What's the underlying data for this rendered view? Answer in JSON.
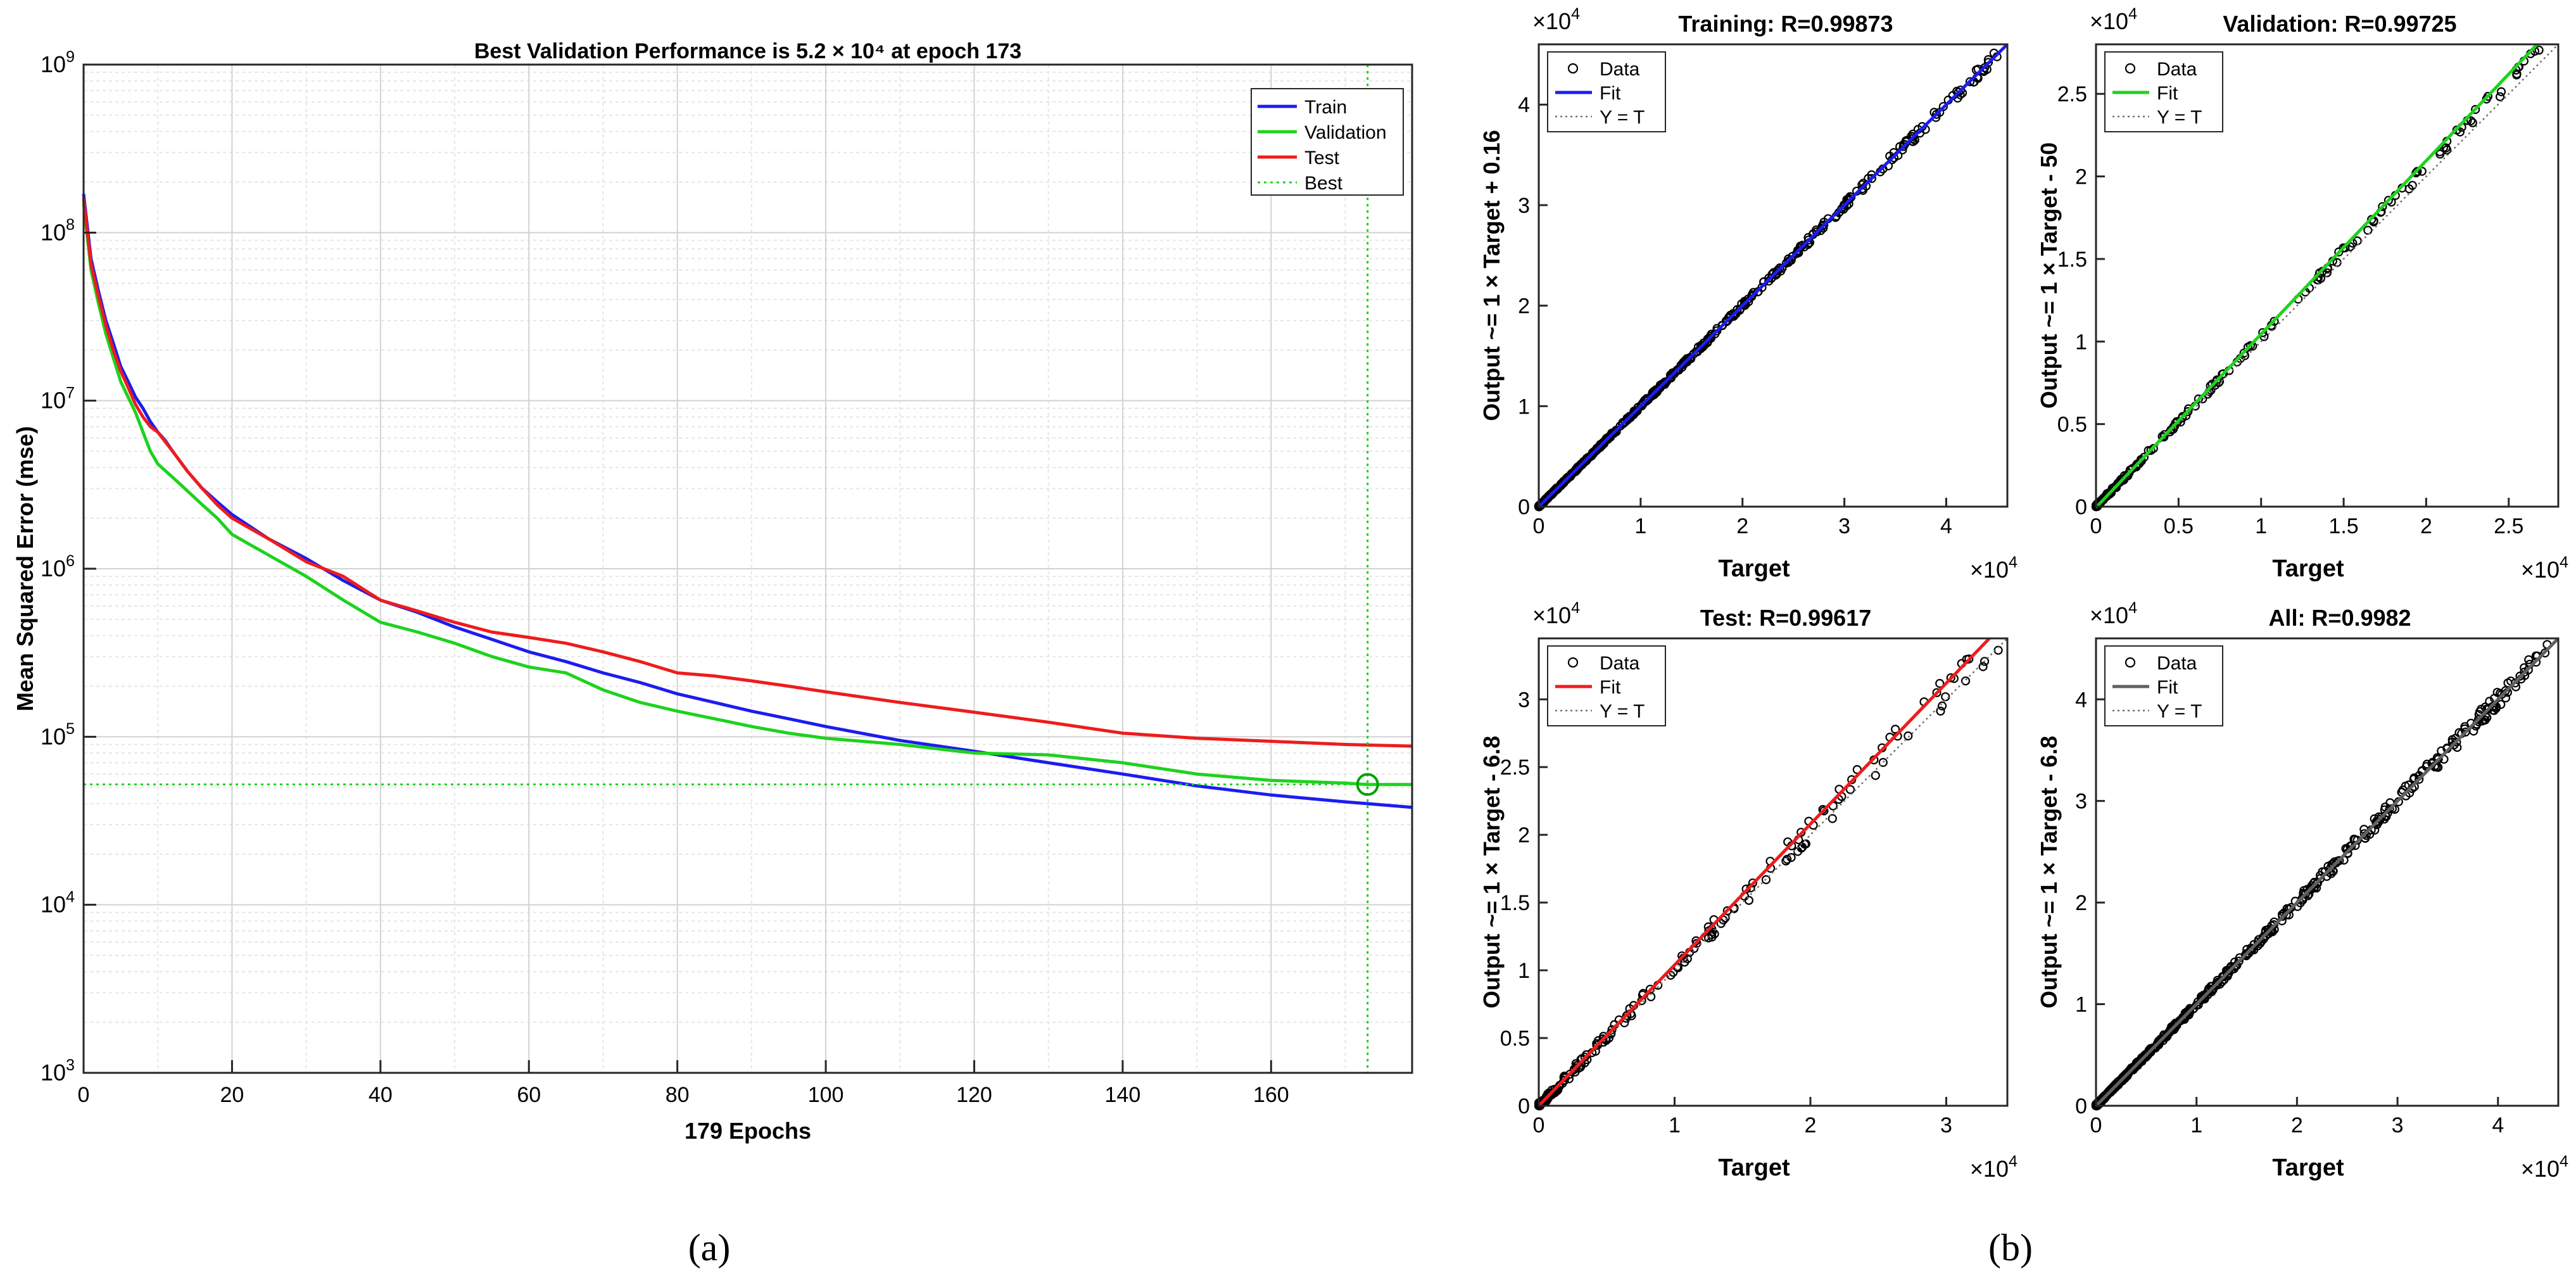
{
  "panel_labels": {
    "a": "(a)",
    "b": "(b)"
  },
  "chart_data": [
    {
      "id": "performance",
      "type": "line",
      "title": "Best Validation Performance is 5.2 × 10⁴ at epoch 173",
      "xlabel": "179 Epochs",
      "ylabel": "Mean Squared Error  (mse)",
      "xlim": [
        0,
        179
      ],
      "ylim": [
        1000,
        1000000000
      ],
      "yscale": "log",
      "grid": true,
      "x_ticks": [
        0,
        20,
        40,
        60,
        80,
        100,
        120,
        140,
        160
      ],
      "y_ticks": [
        {
          "value": 1000,
          "base": "10",
          "exp": "3"
        },
        {
          "value": 10000,
          "base": "10",
          "exp": "4"
        },
        {
          "value": 100000,
          "base": "10",
          "exp": "5"
        },
        {
          "value": 1000000,
          "base": "10",
          "exp": "6"
        },
        {
          "value": 10000000,
          "base": "10",
          "exp": "7"
        },
        {
          "value": 100000000,
          "base": "10",
          "exp": "8"
        },
        {
          "value": 1000000000,
          "base": "10",
          "exp": "9"
        }
      ],
      "legend_position": "top-right",
      "series": [
        {
          "name": "Train",
          "color": "#1c1cf0",
          "points": [
            [
              0,
              170000000.0
            ],
            [
              1,
              70000000.0
            ],
            [
              2,
              45000000.0
            ],
            [
              3,
              30000000.0
            ],
            [
              4,
              22000000.0
            ],
            [
              5,
              16000000.0
            ],
            [
              6,
              13000000.0
            ],
            [
              7,
              10500000.0
            ],
            [
              8,
              9000000.0
            ],
            [
              9,
              7500000.0
            ],
            [
              10,
              6500000.0
            ],
            [
              11,
              5800000.0
            ],
            [
              12,
              5000000.0
            ],
            [
              14,
              3800000.0
            ],
            [
              16,
              3000000.0
            ],
            [
              18,
              2500000.0
            ],
            [
              20,
              2100000.0
            ],
            [
              25,
              1500000.0
            ],
            [
              30,
              1150000.0
            ],
            [
              35,
              850000.0
            ],
            [
              40,
              650000.0
            ],
            [
              45,
              550000.0
            ],
            [
              50,
              450000.0
            ],
            [
              55,
              380000.0
            ],
            [
              60,
              320000.0
            ],
            [
              65,
              280000.0
            ],
            [
              70,
              240000.0
            ],
            [
              75,
              210000.0
            ],
            [
              80,
              180000.0
            ],
            [
              85,
              160000.0
            ],
            [
              90,
              142000.0
            ],
            [
              95,
              128000.0
            ],
            [
              100,
              115000.0
            ],
            [
              110,
              95000.0
            ],
            [
              120,
              82000.0
            ],
            [
              130,
              70000.0
            ],
            [
              140,
              60000.0
            ],
            [
              150,
              51000.0
            ],
            [
              160,
              45000.0
            ],
            [
              170,
              41000.0
            ],
            [
              179,
              38000.0
            ]
          ]
        },
        {
          "name": "Validation",
          "color": "#1ed21e",
          "points": [
            [
              0,
              150000000.0
            ],
            [
              1,
              60000000.0
            ],
            [
              2,
              38000000.0
            ],
            [
              3,
              25000000.0
            ],
            [
              4,
              18000000.0
            ],
            [
              5,
              13000000.0
            ],
            [
              6,
              10500000.0
            ],
            [
              7,
              8500000.0
            ],
            [
              8,
              6500000.0
            ],
            [
              9,
              5000000.0
            ],
            [
              10,
              4200000.0
            ],
            [
              12,
              3500000.0
            ],
            [
              14,
              2900000.0
            ],
            [
              16,
              2400000.0
            ],
            [
              18,
              2000000.0
            ],
            [
              20,
              1600000.0
            ],
            [
              25,
              1200000.0
            ],
            [
              30,
              900000.0
            ],
            [
              35,
              650000.0
            ],
            [
              40,
              480000.0
            ],
            [
              45,
              420000.0
            ],
            [
              50,
              360000.0
            ],
            [
              55,
              300000.0
            ],
            [
              60,
              260000.0
            ],
            [
              65,
              240000.0
            ],
            [
              70,
              190000.0
            ],
            [
              75,
              160000.0
            ],
            [
              80,
              142000.0
            ],
            [
              85,
              128000.0
            ],
            [
              90,
              115000.0
            ],
            [
              95,
              105000.0
            ],
            [
              100,
              98000.0
            ],
            [
              110,
              90000.0
            ],
            [
              120,
              80000.0
            ],
            [
              125,
              79000.0
            ],
            [
              130,
              78000.0
            ],
            [
              140,
              70000.0
            ],
            [
              150,
              60000.0
            ],
            [
              160,
              55000.0
            ],
            [
              170,
              53000.0
            ],
            [
              173,
              52000.0
            ],
            [
              179,
              52000.0
            ]
          ]
        },
        {
          "name": "Test",
          "color": "#ee1c1c",
          "points": [
            [
              0,
              160000000.0
            ],
            [
              1,
              65000000.0
            ],
            [
              2,
              42000000.0
            ],
            [
              3,
              28000000.0
            ],
            [
              4,
              20000000.0
            ],
            [
              5,
              15000000.0
            ],
            [
              6,
              12000000.0
            ],
            [
              7,
              9500000.0
            ],
            [
              8,
              8000000.0
            ],
            [
              9,
              7000000.0
            ],
            [
              10,
              6500000.0
            ],
            [
              12,
              5000000.0
            ],
            [
              14,
              3800000.0
            ],
            [
              16,
              3000000.0
            ],
            [
              18,
              2400000.0
            ],
            [
              20,
              2000000.0
            ],
            [
              25,
              1500000.0
            ],
            [
              30,
              1100000.0
            ],
            [
              35,
              900000.0
            ],
            [
              40,
              650000.0
            ],
            [
              45,
              560000.0
            ],
            [
              50,
              480000.0
            ],
            [
              55,
              420000.0
            ],
            [
              60,
              390000.0
            ],
            [
              65,
              360000.0
            ],
            [
              70,
              320000.0
            ],
            [
              75,
              280000.0
            ],
            [
              80,
              240000.0
            ],
            [
              85,
              230000.0
            ],
            [
              90,
              215000.0
            ],
            [
              95,
              200000.0
            ],
            [
              100,
              185000.0
            ],
            [
              110,
              160000.0
            ],
            [
              120,
              140000.0
            ],
            [
              130,
              122000.0
            ],
            [
              140,
              105000.0
            ],
            [
              150,
              98000.0
            ],
            [
              160,
              94000.0
            ],
            [
              170,
              90000.0
            ],
            [
              179,
              88000.0
            ]
          ]
        },
        {
          "name": "Best",
          "color": "#1ed21e",
          "style": "dotted"
        }
      ],
      "best": {
        "epoch": 173,
        "value": 52000
      }
    },
    {
      "id": "reg-training",
      "type": "scatter",
      "title": "Training: R=0.99873",
      "xlabel": "Target",
      "ylabel": "Output ~= 1 × Target + 0.16",
      "xlim": [
        0,
        4.6
      ],
      "ylim": [
        0,
        4.6
      ],
      "x_ticks": [
        "0",
        "1",
        "2",
        "3",
        "4"
      ],
      "y_ticks": [
        "0",
        "1",
        "2",
        "3",
        "4"
      ],
      "x_ticks_values": [
        0,
        1,
        2,
        3,
        4
      ],
      "y_ticks_values": [
        0,
        1,
        2,
        3,
        4
      ],
      "multiplier_base": "×10",
      "multiplier_exp": "4",
      "fit": {
        "slope": 1.0,
        "intercept": 1.6e-05,
        "color": "#1c1cf0"
      },
      "legend": {
        "data": "Data",
        "fit": "Fit",
        "identity": "Y = T"
      },
      "legend_position": "top-left",
      "max_point": 4.5,
      "spread": 0.02
    },
    {
      "id": "reg-validation",
      "type": "scatter",
      "title": "Validation: R=0.99725",
      "xlabel": "Target",
      "ylabel": "Output ~= 1 × Target - 50",
      "xlim": [
        0,
        2.8
      ],
      "ylim": [
        0,
        2.8
      ],
      "x_ticks": [
        "0",
        "0.5",
        "1",
        "1.5",
        "2",
        "2.5"
      ],
      "y_ticks": [
        "0",
        "0.5",
        "1",
        "1.5",
        "2",
        "2.5"
      ],
      "x_ticks_values": [
        0,
        0.5,
        1,
        1.5,
        2,
        2.5
      ],
      "y_ticks_values": [
        0,
        0.5,
        1,
        1.5,
        2,
        2.5
      ],
      "multiplier_base": "×10",
      "multiplier_exp": "4",
      "fit": {
        "slope": 1.05,
        "intercept": -0.005,
        "color": "#1ed21e"
      },
      "legend": {
        "data": "Data",
        "fit": "Fit",
        "identity": "Y = T"
      },
      "legend_position": "top-left",
      "max_point": 2.7,
      "spread": 0.025
    },
    {
      "id": "reg-test",
      "type": "scatter",
      "title": "Test: R=0.99617",
      "xlabel": "Target",
      "ylabel": "Output ~= 1 × Target - 6.8",
      "xlim": [
        0,
        3.45
      ],
      "ylim": [
        0,
        3.45
      ],
      "x_ticks": [
        "0",
        "1",
        "2",
        "3"
      ],
      "y_ticks": [
        "0",
        "0.5",
        "1",
        "1.5",
        "2",
        "2.5",
        "3"
      ],
      "x_ticks_values": [
        0,
        1,
        2,
        3
      ],
      "y_ticks_values": [
        0,
        0.5,
        1,
        1.5,
        2,
        2.5,
        3
      ],
      "multiplier_base": "×10",
      "multiplier_exp": "4",
      "fit": {
        "slope": 1.04,
        "intercept": -0.0007,
        "color": "#ee1c1c"
      },
      "legend": {
        "data": "Data",
        "fit": "Fit",
        "identity": "Y = T"
      },
      "legend_position": "top-left",
      "max_point": 3.4,
      "spread": 0.06
    },
    {
      "id": "reg-all",
      "type": "scatter",
      "title": "All: R=0.9982",
      "xlabel": "Target",
      "ylabel": "Output ~= 1 × Target - 6.8",
      "xlim": [
        0,
        4.6
      ],
      "ylim": [
        0,
        4.6
      ],
      "x_ticks": [
        "0",
        "1",
        "2",
        "3",
        "4"
      ],
      "y_ticks": [
        "0",
        "1",
        "2",
        "3",
        "4"
      ],
      "x_ticks_values": [
        0,
        1,
        2,
        3,
        4
      ],
      "y_ticks_values": [
        0,
        1,
        2,
        3,
        4
      ],
      "multiplier_base": "×10",
      "multiplier_exp": "4",
      "fit": {
        "slope": 1.0,
        "intercept": -0.0007,
        "color": "#606060"
      },
      "legend": {
        "data": "Data",
        "fit": "Fit",
        "identity": "Y = T"
      },
      "legend_position": "top-left",
      "max_point": 4.5,
      "spread": 0.035
    }
  ]
}
